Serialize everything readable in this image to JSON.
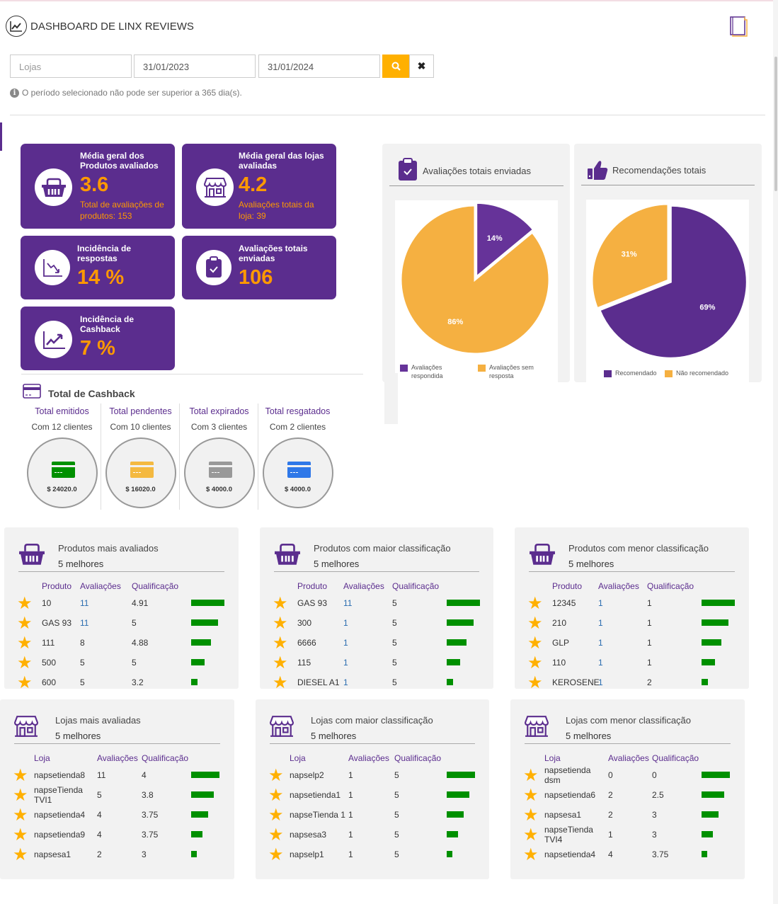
{
  "header": {
    "title": "DASHBOARD DE LINX REVIEWS"
  },
  "filters": {
    "stores_placeholder": "Lojas",
    "date_from": "31/01/2023",
    "date_to": "31/01/2024",
    "info": "O período selecionado não pode ser superior a 365 dia(s)."
  },
  "kpis": {
    "products": {
      "label": "Média geral dos Produtos avaliados",
      "value": "3.6",
      "sub": "Total de avaliações de produtos: 153"
    },
    "stores": {
      "label": "Média geral das lojas avaliadas",
      "value": "4.2",
      "sub": "Avaliações totais da loja: 39"
    },
    "responses": {
      "label": "Incidência de respostas",
      "value": "14 %"
    },
    "sent": {
      "label": "Avaliações totais enviadas",
      "value": "106"
    },
    "cashback": {
      "label": "Incidência de Cashback",
      "value": "7 %"
    }
  },
  "cashback": {
    "title": "Total de Cashback",
    "items": [
      {
        "label": "Total emitidos",
        "clients": "Com 12 clientes",
        "amount": "$ 24020.0",
        "color": "#009000"
      },
      {
        "label": "Total pendentes",
        "clients": "Com 10 clientes",
        "amount": "$ 16020.0",
        "color": "#f4b940"
      },
      {
        "label": "Total expirados",
        "clients": "Com 3 clientes",
        "amount": "$ 4000.0",
        "color": "#999999"
      },
      {
        "label": "Total resgatados",
        "clients": "Com 2 clientes",
        "amount": "$ 4000.0",
        "color": "#2f78e8"
      }
    ]
  },
  "chart_data": [
    {
      "type": "pie",
      "title": "Avaliações totais enviadas",
      "labels": [
        "Avaliações respondida",
        "Avaliações sem resposta"
      ],
      "values": [
        14,
        86
      ],
      "data_labels": [
        "14%",
        "86%"
      ],
      "colors": [
        "#663399",
        "#f5b041"
      ],
      "legend": "bottom"
    },
    {
      "type": "pie",
      "title": "Recomendações totais",
      "labels": [
        "Recomendado",
        "Não recomendado"
      ],
      "values": [
        69,
        31
      ],
      "data_labels": [
        "69%",
        "31%"
      ],
      "colors": [
        "#5b2d8e",
        "#f5b041"
      ],
      "legend": "bottom"
    }
  ],
  "tables": [
    {
      "title": "Produtos mais avaliados",
      "subtitle": "5 melhores",
      "headers": [
        "Produto",
        "Avaliações",
        "Qualificação"
      ],
      "rows": [
        [
          "10",
          "11",
          "4.91"
        ],
        [
          "GAS 93",
          "11",
          "5"
        ],
        [
          "111",
          "8",
          "4.88"
        ],
        [
          "500",
          "5",
          "5"
        ],
        [
          "600",
          "5",
          "3.2"
        ]
      ]
    },
    {
      "title": "Produtos com maior classificação",
      "subtitle": "5 melhores",
      "headers": [
        "Produto",
        "Avaliações",
        "Qualificação"
      ],
      "rows": [
        [
          "GAS 93",
          "11",
          "5"
        ],
        [
          "300",
          "1",
          "5"
        ],
        [
          "6666",
          "1",
          "5"
        ],
        [
          "115",
          "1",
          "5"
        ],
        [
          "DIESEL A1",
          "1",
          "5"
        ]
      ]
    },
    {
      "title": "Produtos com menor classificação",
      "subtitle": "5 melhores",
      "headers": [
        "Produto",
        "Avaliações",
        "Qualificação"
      ],
      "rows": [
        [
          "12345",
          "1",
          "1"
        ],
        [
          "210",
          "1",
          "1"
        ],
        [
          "GLP",
          "1",
          "1"
        ],
        [
          "110",
          "1",
          "1"
        ],
        [
          "KEROSENE",
          "1",
          "2"
        ]
      ]
    },
    {
      "title": "Lojas mais avaliadas",
      "subtitle": "5 melhores",
      "headers": [
        "Loja",
        "Avaliações",
        "Qualificação"
      ],
      "rows": [
        [
          "napsetienda8",
          "11",
          "4"
        ],
        [
          "napseTienda TVI1",
          "5",
          "3.8"
        ],
        [
          "napsetienda4",
          "4",
          "3.75"
        ],
        [
          "napsetienda9",
          "4",
          "3.75"
        ],
        [
          "napsesa1",
          "2",
          "3"
        ]
      ]
    },
    {
      "title": "Lojas com maior classificação",
      "subtitle": "5 melhores",
      "headers": [
        "Loja",
        "Avaliações",
        "Qualificação"
      ],
      "rows": [
        [
          "napselp2",
          "1",
          "5"
        ],
        [
          "napsetienda1",
          "1",
          "5"
        ],
        [
          "napseTienda 1",
          "1",
          "5"
        ],
        [
          "napsesa3",
          "1",
          "5"
        ],
        [
          "napselp1",
          "1",
          "5"
        ]
      ]
    },
    {
      "title": "Lojas com menor classificação",
      "subtitle": "5 melhores",
      "headers": [
        "Loja",
        "Avaliações",
        "Qualificação"
      ],
      "rows": [
        [
          "napsetienda dsm",
          "0",
          "0"
        ],
        [
          "napsetienda6",
          "2",
          "2.5"
        ],
        [
          "napsesa1",
          "2",
          "3"
        ],
        [
          "napseTienda TVI4",
          "1",
          "3"
        ],
        [
          "napsetienda4",
          "4",
          "3.75"
        ]
      ]
    }
  ]
}
